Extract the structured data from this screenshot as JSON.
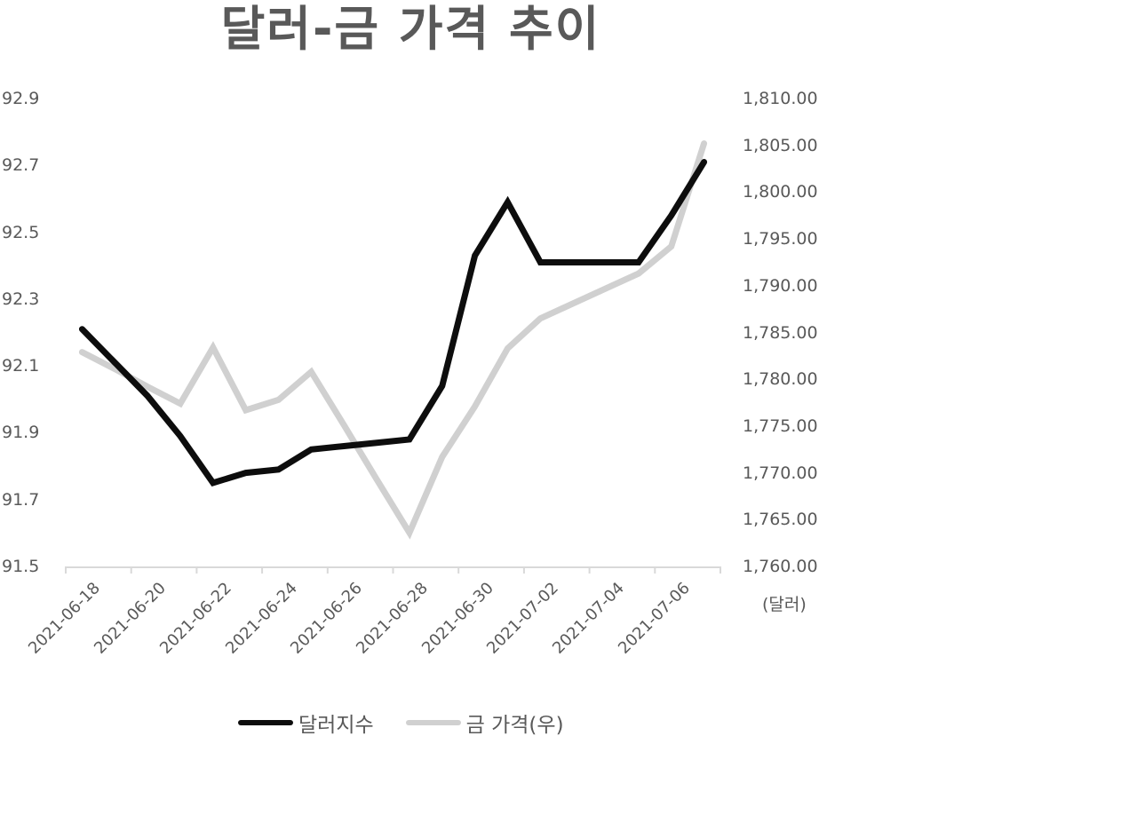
{
  "title": "달러-금 가격 추이",
  "colors": {
    "dollar_index": "#0d0d0d",
    "gold_price": "#d0d0d0",
    "axis": "#d9d9d9",
    "text": "#595959"
  },
  "legend": [
    {
      "label": "달러지수",
      "color": "#0d0d0d"
    },
    {
      "label": "금 가격(우)",
      "color": "#d0d0d0"
    }
  ],
  "right_axis_unit": "(달러)",
  "chart_data": {
    "type": "line",
    "title": "달러-금 가격 추이",
    "xlabel": "",
    "ylabel": "",
    "y2label": "(달러)",
    "x": [
      "2021-06-18",
      "2021-06-19",
      "2021-06-20",
      "2021-06-21",
      "2021-06-22",
      "2021-06-23",
      "2021-06-24",
      "2021-06-25",
      "2021-06-26",
      "2021-06-27",
      "2021-06-28",
      "2021-06-29",
      "2021-06-30",
      "2021-07-01",
      "2021-07-02",
      "2021-07-03",
      "2021-07-04",
      "2021-07-05",
      "2021-07-06",
      "2021-07-07"
    ],
    "x_tick_labels": [
      "2021-06-18",
      "2021-06-20",
      "2021-06-22",
      "2021-06-24",
      "2021-06-26",
      "2021-06-28",
      "2021-06-30",
      "2021-07-02",
      "2021-07-04",
      "2021-07-06"
    ],
    "series": [
      {
        "name": "달러지수",
        "axis": "left",
        "values": [
          92.21,
          92.11,
          92.01,
          91.89,
          91.75,
          91.78,
          91.79,
          91.85,
          91.86,
          91.87,
          91.88,
          92.04,
          92.43,
          92.59,
          92.41,
          92.41,
          92.41,
          92.41,
          92.55,
          92.71
        ]
      },
      {
        "name": "금 가격(우)",
        "axis": "right",
        "values": [
          1782.9,
          1781.1,
          1779.2,
          1777.4,
          1783.4,
          1776.7,
          1777.8,
          1780.8,
          1775.1,
          1769.3,
          1763.6,
          1771.7,
          1777.1,
          1783.3,
          1786.5,
          1788.1,
          1789.7,
          1791.3,
          1794.2,
          1805.2
        ]
      }
    ],
    "ylim": [
      91.5,
      92.9
    ],
    "y_ticks": [
      "92.9",
      "92.7",
      "92.5",
      "92.3",
      "92.1",
      "91.9",
      "91.7",
      "91.5"
    ],
    "y2lim": [
      1760,
      1810
    ],
    "y2_ticks": [
      "1,810.00",
      "1,805.00",
      "1,800.00",
      "1,795.00",
      "1,790.00",
      "1,785.00",
      "1,780.00",
      "1,775.00",
      "1,770.00",
      "1,765.00",
      "1,760.00"
    ],
    "grid": false,
    "legend_position": "bottom"
  }
}
